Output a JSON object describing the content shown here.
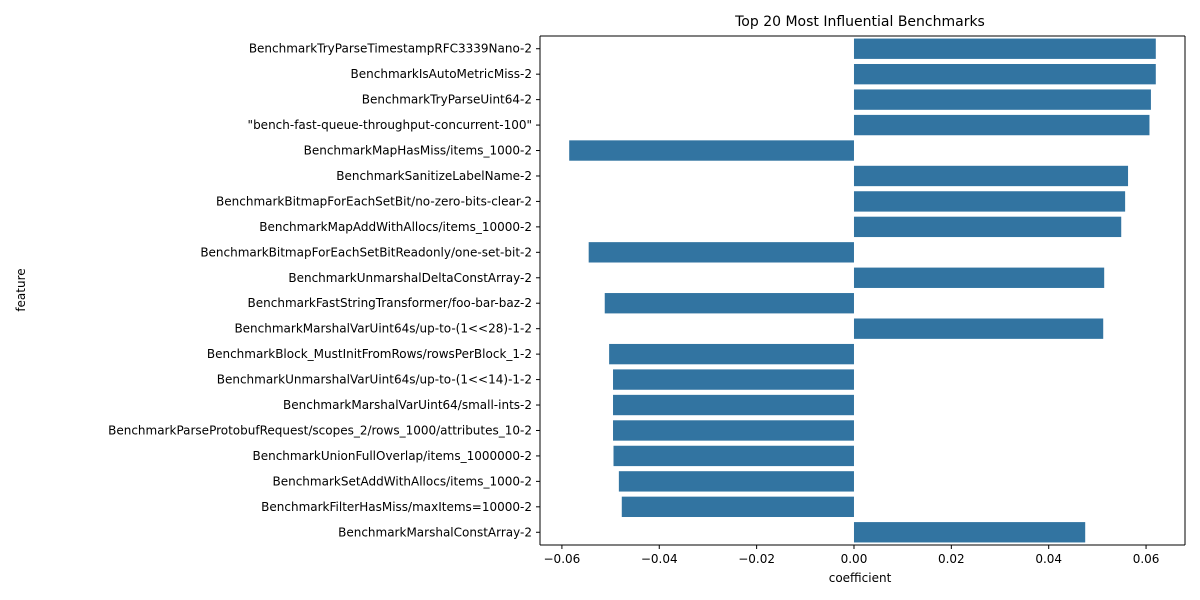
{
  "chart_data": {
    "type": "bar",
    "orientation": "horizontal",
    "title": "Top 20 Most Influential Benchmarks",
    "xlabel": "coefficient",
    "ylabel": "feature",
    "xlim": [
      -0.0645,
      0.068
    ],
    "xticks": [
      "−0.06",
      "−0.04",
      "−0.02",
      "0.00",
      "0.02",
      "0.04",
      "0.06"
    ],
    "xtick_values": [
      -0.06,
      -0.04,
      -0.02,
      0.0,
      0.02,
      0.04,
      0.06
    ],
    "grid": false,
    "legend": "none",
    "bar_color": "#3274a1",
    "categories": [
      "BenchmarkTryParseTimestampRFC3339Nano-2",
      "BenchmarkIsAutoMetricMiss-2",
      "BenchmarkTryParseUint64-2",
      "\"bench-fast-queue-throughput-concurrent-100\"",
      "BenchmarkMapHasMiss/items_1000-2",
      "BenchmarkSanitizeLabelName-2",
      "BenchmarkBitmapForEachSetBit/no-zero-bits-clear-2",
      "BenchmarkMapAddWithAllocs/items_10000-2",
      "BenchmarkBitmapForEachSetBitReadonly/one-set-bit-2",
      "BenchmarkUnmarshalDeltaConstArray-2",
      "BenchmarkFastStringTransformer/foo-bar-baz-2",
      "BenchmarkMarshalVarUint64s/up-to-(1<<28)-1-2",
      "BenchmarkBlock_MustInitFromRows/rowsPerBlock_1-2",
      "BenchmarkUnmarshalVarUint64s/up-to-(1<<14)-1-2",
      "BenchmarkMarshalVarUint64/small-ints-2",
      "BenchmarkParseProtobufRequest/scopes_2/rows_1000/attributes_10-2",
      "BenchmarkUnionFullOverlap/items_1000000-2",
      "BenchmarkSetAddWithAllocs/items_1000-2",
      "BenchmarkFilterHasMiss/maxItems=10000-2",
      "BenchmarkMarshalConstArray-2"
    ],
    "values": [
      0.062,
      0.062,
      0.061,
      0.0607,
      -0.0585,
      0.0563,
      0.0557,
      0.0549,
      -0.0545,
      0.0514,
      -0.0512,
      0.0512,
      -0.0503,
      -0.0495,
      -0.0495,
      -0.0495,
      -0.0494,
      -0.0483,
      -0.0477,
      0.0475
    ]
  }
}
